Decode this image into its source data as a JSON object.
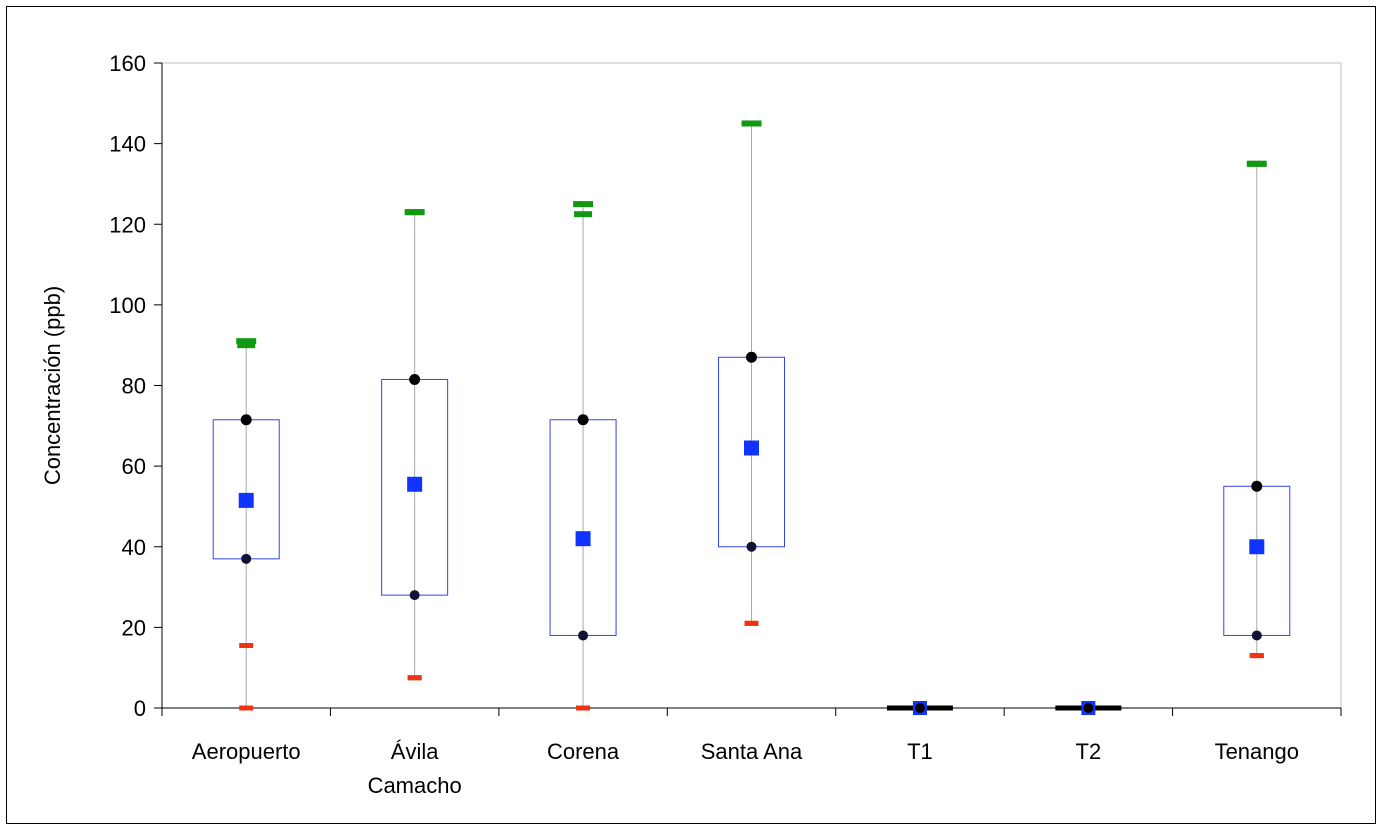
{
  "chart_data": {
    "type": "box",
    "title": "",
    "xlabel": "",
    "ylabel": "Concentración (ppb)",
    "ylim": [
      0,
      160
    ],
    "yticks": [
      0,
      20,
      40,
      60,
      80,
      100,
      120,
      140,
      160
    ],
    "grid": false,
    "legend": "none",
    "categories": [
      [
        "Aeropuerto"
      ],
      [
        "Ávila",
        "Camacho"
      ],
      [
        "Corena"
      ],
      [
        "Santa Ana"
      ],
      [
        "T1"
      ],
      [
        "T2"
      ],
      [
        "Tenango"
      ]
    ],
    "series": [
      {
        "q1": 37,
        "q3": 71.5,
        "mean": 51.5,
        "min": 0,
        "max": 91,
        "p_low": 15.5,
        "p_high": 90,
        "has_box": true
      },
      {
        "q1": 28,
        "q3": 81.5,
        "mean": 55.5,
        "min": 7.5,
        "max": 123,
        "p_low": 7.5,
        "p_high": 123,
        "has_box": true
      },
      {
        "q1": 18,
        "q3": 71.5,
        "mean": 42,
        "min": 0,
        "max": 125,
        "p_low": 0,
        "p_high": 122.5,
        "has_box": true
      },
      {
        "q1": 40,
        "q3": 87,
        "mean": 64.5,
        "min": 21,
        "max": 145,
        "p_low": 21,
        "p_high": 145,
        "has_box": true
      },
      {
        "q1": 0,
        "q3": 0,
        "mean": 0,
        "min": 0,
        "max": 0,
        "p_low": 0,
        "p_high": 0,
        "has_box": false
      },
      {
        "q1": 0,
        "q3": 0,
        "mean": 0,
        "min": 0,
        "max": 0,
        "p_low": 0,
        "p_high": 0,
        "has_box": false
      },
      {
        "q1": 18,
        "q3": 55,
        "mean": 40,
        "min": 13,
        "max": 135,
        "p_low": 13,
        "p_high": 135,
        "has_box": true
      }
    ],
    "colors": {
      "box": "#3344ee",
      "mean": "#1133ff",
      "quartile_marker": "#000000",
      "max_marker": "#119911",
      "min_marker": "#ee3311",
      "whisker": "#aaaaaa",
      "axis": "#000000",
      "plot_border": "#c0c0c0"
    }
  }
}
